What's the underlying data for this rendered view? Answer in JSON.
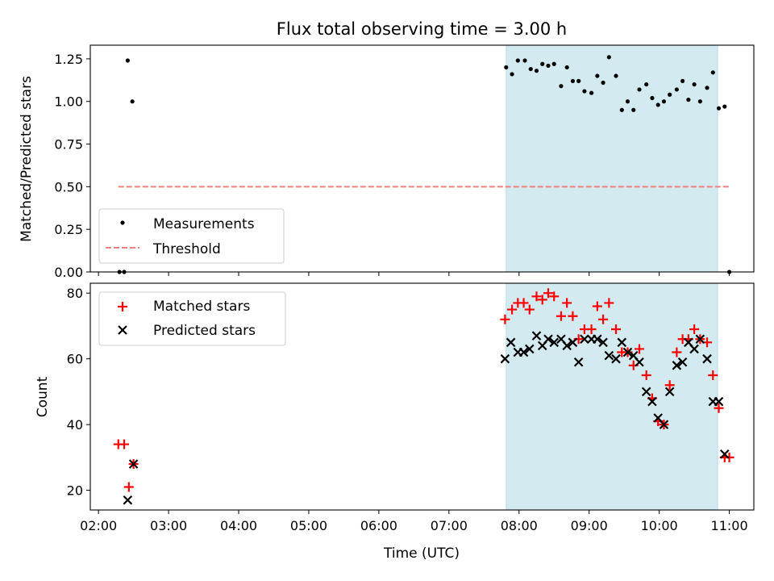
{
  "title": "Flux total observing time = 3.00 h",
  "chart_data": [
    {
      "type": "scatter",
      "ylabel": "Matched/Predicted stars",
      "xlim": [
        "01:53",
        "11:21"
      ],
      "ylim": [
        0,
        1.33
      ],
      "yticks": [
        "0.00",
        "0.25",
        "0.50",
        "0.75",
        "1.00",
        "1.25"
      ],
      "shaded_region": {
        "start": "07:49",
        "end": "10:50",
        "color": "#d2eaf0"
      },
      "legend": {
        "placement": "lower-left"
      },
      "series": [
        {
          "name": "Measurements",
          "marker": "dot",
          "color": "#000000",
          "points": [
            [
              "02:18",
              0.0
            ],
            [
              "02:22",
              0.0
            ],
            [
              "02:25",
              1.24
            ],
            [
              "02:29",
              1.0
            ],
            [
              "07:49",
              1.2
            ],
            [
              "07:54",
              1.16
            ],
            [
              "07:59",
              1.24
            ],
            [
              "08:05",
              1.24
            ],
            [
              "08:10",
              1.19
            ],
            [
              "08:15",
              1.18
            ],
            [
              "08:20",
              1.22
            ],
            [
              "08:25",
              1.21
            ],
            [
              "08:30",
              1.22
            ],
            [
              "08:36",
              1.09
            ],
            [
              "08:41",
              1.2
            ],
            [
              "08:46",
              1.12
            ],
            [
              "08:51",
              1.12
            ],
            [
              "08:56",
              1.06
            ],
            [
              "09:02",
              1.05
            ],
            [
              "09:07",
              1.15
            ],
            [
              "09:12",
              1.11
            ],
            [
              "09:17",
              1.26
            ],
            [
              "09:23",
              1.15
            ],
            [
              "09:28",
              0.95
            ],
            [
              "09:33",
              1.0
            ],
            [
              "09:38",
              0.95
            ],
            [
              "09:43",
              1.07
            ],
            [
              "09:49",
              1.1
            ],
            [
              "09:54",
              1.02
            ],
            [
              "09:59",
              0.98
            ],
            [
              "10:04",
              1.0
            ],
            [
              "10:09",
              1.04
            ],
            [
              "10:15",
              1.07
            ],
            [
              "10:20",
              1.12
            ],
            [
              "10:25",
              1.01
            ],
            [
              "10:30",
              1.1
            ],
            [
              "10:35",
              1.0
            ],
            [
              "10:41",
              1.08
            ],
            [
              "10:46",
              1.17
            ],
            [
              "10:51",
              0.96
            ],
            [
              "10:56",
              0.97
            ],
            [
              "11:00",
              0.0
            ]
          ]
        },
        {
          "name": "Threshold",
          "marker": "dashed-line",
          "color": "#f08080",
          "points": [
            [
              "02:17",
              0.5
            ],
            [
              "11:00",
              0.5
            ]
          ]
        }
      ]
    },
    {
      "type": "scatter",
      "xlabel": "Time (UTC)",
      "ylabel": "Count",
      "xlim": [
        "01:53",
        "11:21"
      ],
      "ylim": [
        14,
        83
      ],
      "yticks": [
        "20",
        "40",
        "60",
        "80"
      ],
      "xticks": [
        "02:00",
        "03:00",
        "04:00",
        "05:00",
        "06:00",
        "07:00",
        "08:00",
        "09:00",
        "10:00",
        "11:00"
      ],
      "shaded_region": {
        "start": "07:49",
        "end": "10:50",
        "color": "#d2eaf0"
      },
      "legend": {
        "placement": "upper-left"
      },
      "series": [
        {
          "name": "Matched stars",
          "marker": "plus",
          "color": "#ff0000",
          "points": [
            [
              "02:17",
              34
            ],
            [
              "02:22",
              34
            ],
            [
              "02:26",
              21
            ],
            [
              "02:30",
              28
            ],
            [
              "07:48",
              72
            ],
            [
              "07:54",
              75
            ],
            [
              "07:59",
              77
            ],
            [
              "08:04",
              77
            ],
            [
              "08:09",
              75
            ],
            [
              "08:15",
              79
            ],
            [
              "08:20",
              78
            ],
            [
              "08:25",
              80
            ],
            [
              "08:30",
              79
            ],
            [
              "08:36",
              73
            ],
            [
              "08:41",
              77
            ],
            [
              "08:46",
              73
            ],
            [
              "08:51",
              66
            ],
            [
              "08:56",
              69
            ],
            [
              "09:02",
              69
            ],
            [
              "09:07",
              76
            ],
            [
              "09:12",
              72
            ],
            [
              "09:17",
              77
            ],
            [
              "09:23",
              69
            ],
            [
              "09:28",
              62
            ],
            [
              "09:33",
              62
            ],
            [
              "09:38",
              58
            ],
            [
              "09:43",
              63
            ],
            [
              "09:49",
              55
            ],
            [
              "09:54",
              48
            ],
            [
              "09:59",
              41
            ],
            [
              "10:04",
              40
            ],
            [
              "10:09",
              52
            ],
            [
              "10:15",
              62
            ],
            [
              "10:20",
              66
            ],
            [
              "10:25",
              66
            ],
            [
              "10:30",
              69
            ],
            [
              "10:35",
              66
            ],
            [
              "10:41",
              65
            ],
            [
              "10:46",
              55
            ],
            [
              "10:51",
              45
            ],
            [
              "10:56",
              30
            ],
            [
              "11:00",
              30
            ]
          ]
        },
        {
          "name": "Predicted stars",
          "marker": "cross",
          "color": "#000000",
          "points": [
            [
              "02:25",
              17
            ],
            [
              "02:30",
              28
            ],
            [
              "07:48",
              60
            ],
            [
              "07:53",
              65
            ],
            [
              "07:59",
              62
            ],
            [
              "08:04",
              62
            ],
            [
              "08:09",
              63
            ],
            [
              "08:15",
              67
            ],
            [
              "08:20",
              64
            ],
            [
              "08:25",
              66
            ],
            [
              "08:30",
              65
            ],
            [
              "08:36",
              66
            ],
            [
              "08:41",
              64
            ],
            [
              "08:46",
              65
            ],
            [
              "08:51",
              59
            ],
            [
              "08:56",
              66
            ],
            [
              "09:02",
              66
            ],
            [
              "09:07",
              66
            ],
            [
              "09:12",
              65
            ],
            [
              "09:17",
              61
            ],
            [
              "09:23",
              60
            ],
            [
              "09:28",
              65
            ],
            [
              "09:33",
              62
            ],
            [
              "09:38",
              61
            ],
            [
              "09:43",
              59
            ],
            [
              "09:49",
              50
            ],
            [
              "09:54",
              47
            ],
            [
              "09:59",
              42
            ],
            [
              "10:04",
              40
            ],
            [
              "10:09",
              50
            ],
            [
              "10:15",
              58
            ],
            [
              "10:20",
              59
            ],
            [
              "10:25",
              65
            ],
            [
              "10:30",
              63
            ],
            [
              "10:35",
              66
            ],
            [
              "10:41",
              60
            ],
            [
              "10:46",
              47
            ],
            [
              "10:51",
              47
            ],
            [
              "10:56",
              31
            ]
          ]
        }
      ]
    }
  ]
}
